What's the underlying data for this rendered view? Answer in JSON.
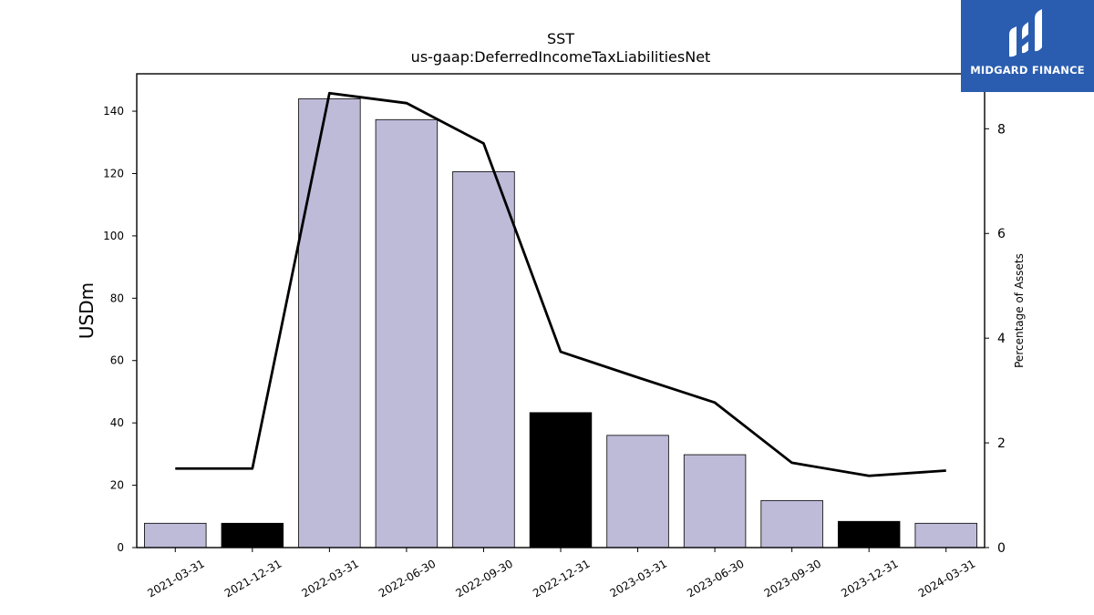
{
  "logo": {
    "text": "MIDGARD FINANCE"
  },
  "chart_data": {
    "type": "bar+line",
    "title": "SST",
    "subtitle": "us-gaap:DeferredIncomeTaxLiabilitiesNet",
    "ylabel": "USDm",
    "y2label": "Percentage of Assets",
    "categories": [
      "2021-03-31",
      "2021-12-31",
      "2022-03-31",
      "2022-06-30",
      "2022-09-30",
      "2022-12-31",
      "2023-03-31",
      "2023-06-30",
      "2023-09-30",
      "2023-12-31",
      "2024-03-31"
    ],
    "series": [
      {
        "kind": "bar",
        "values": [
          7.8,
          7.8,
          144.0,
          137.3,
          120.6,
          43.3,
          36.0,
          29.8,
          15.1,
          8.4,
          7.8
        ],
        "colors": [
          "#bebbd9",
          "#000000",
          "#bebbd9",
          "#bebbd9",
          "#bebbd9",
          "#000000",
          "#bebbd9",
          "#bebbd9",
          "#bebbd9",
          "#000000",
          "#bebbd9"
        ]
      },
      {
        "kind": "line",
        "axis": "right",
        "values": [
          1.51,
          1.51,
          8.68,
          8.49,
          7.72,
          3.74,
          3.25,
          2.77,
          1.62,
          1.37,
          1.47
        ]
      }
    ],
    "ylim": [
      0,
      152
    ],
    "y2lim": [
      0,
      9.05
    ],
    "yticks": [
      0,
      20,
      40,
      60,
      80,
      100,
      120,
      140
    ],
    "y2ticks": [
      0,
      2,
      4,
      6,
      8
    ],
    "grid": false
  }
}
